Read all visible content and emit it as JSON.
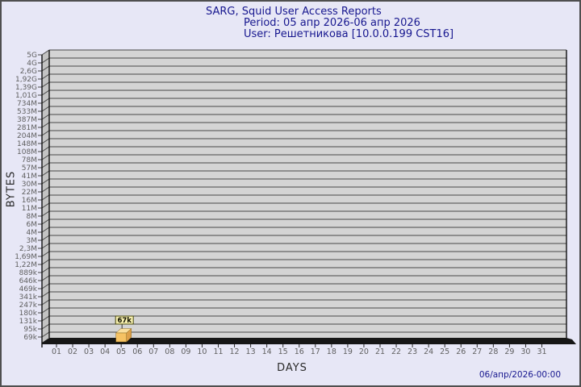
{
  "header": {
    "title": "SARG, Squid User Access Reports",
    "period": "Period: 05 апр 2026-06 апр 2026",
    "user": "User: Решетникова [10.0.0.199 CST16]"
  },
  "footer": {
    "generated": "06/апр/2026-00:00"
  },
  "colors": {
    "bg": "#e7e7f6",
    "frame": "#4f4f4f",
    "ink": "#2a2a2a",
    "title-ink": "#17178f",
    "tick-ink": "#5f5f5f",
    "face": "#d4d4d4",
    "wall": "#c3c3c3",
    "grid": "#474747",
    "edge": "#111111",
    "floor": "#161616"
  },
  "chart_data": {
    "type": "bar",
    "title": "SARG, Squid User Access Reports",
    "subtitle": "Period: 05 апр 2026-06 апр 2026",
    "user_line": "User: Решетникова [10.0.0.199 CST16]",
    "xlabel": "DAYS",
    "ylabel": "BYTES",
    "scale": "log",
    "grid": true,
    "x_ticks": [
      "01",
      "02",
      "03",
      "04",
      "05",
      "06",
      "07",
      "08",
      "09",
      "10",
      "11",
      "12",
      "13",
      "14",
      "15",
      "16",
      "17",
      "18",
      "19",
      "20",
      "21",
      "22",
      "23",
      "24",
      "25",
      "26",
      "27",
      "28",
      "29",
      "30",
      "31"
    ],
    "y_ticks": [
      "5G",
      "4G",
      "2,6G",
      "1,92G",
      "1,39G",
      "1,01G",
      "734M",
      "533M",
      "387M",
      "281M",
      "204M",
      "148M",
      "108M",
      "78M",
      "57M",
      "41M",
      "30M",
      "22M",
      "16M",
      "11M",
      "8M",
      "6M",
      "4M",
      "3M",
      "2,3M",
      "1,69M",
      "1,22M",
      "889k",
      "646k",
      "469k",
      "341k",
      "247k",
      "180k",
      "131k",
      "95k",
      "69k"
    ],
    "bars": [
      {
        "day": "05",
        "value_label": "67k",
        "value_bytes": 67000
      }
    ],
    "bar_colors": {
      "front": "#f6c263",
      "top": "#fbdf9d",
      "side": "#dda04a",
      "outline": "#8a6a20",
      "annotation_bg": "#f6efae",
      "annotation_border": "#4a4a10",
      "annotation_ink": "#111100",
      "connector": "#333333"
    }
  }
}
